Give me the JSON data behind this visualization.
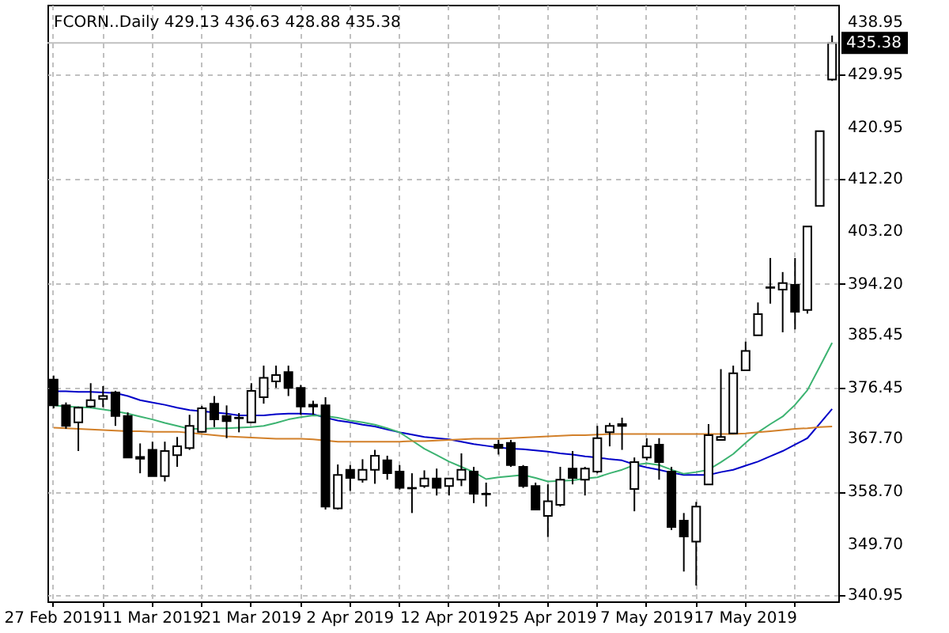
{
  "chart_data": {
    "type": "candlestick",
    "title": "FCORN..Daily  429.13 436.63 428.88 435.38",
    "categories": [
      "27 Feb 2019",
      null,
      null,
      null,
      null,
      null,
      null,
      null,
      "11 Mar 2019",
      null,
      null,
      null,
      null,
      null,
      null,
      null,
      "21 Mar 2019",
      null,
      null,
      null,
      null,
      null,
      null,
      null,
      "2 Apr 2019",
      null,
      null,
      null,
      null,
      null,
      null,
      null,
      "12 Apr 2019",
      null,
      null,
      null,
      null,
      null,
      null,
      null,
      "25 Apr 2019",
      null,
      null,
      null,
      null,
      null,
      null,
      null,
      "7 May 2019",
      null,
      null,
      null,
      null,
      null,
      null,
      null,
      "17 May 2019",
      null,
      null,
      null,
      null,
      null,
      null,
      null
    ],
    "ohlc": [
      [
        377.8,
        378.5,
        372.9,
        373.4
      ],
      [
        373.4,
        373.9,
        369.4,
        369.9
      ],
      [
        370.5,
        373.2,
        365.6,
        373.0
      ],
      [
        373.2,
        377.2,
        373.0,
        374.3
      ],
      [
        374.5,
        376.7,
        373.1,
        375.0
      ],
      [
        375.6,
        375.9,
        369.9,
        371.6
      ],
      [
        371.6,
        372.2,
        364.5,
        364.5
      ],
      [
        364.6,
        366.9,
        361.8,
        364.3
      ],
      [
        365.8,
        367.2,
        361.3,
        361.3
      ],
      [
        361.3,
        367.2,
        360.4,
        365.6
      ],
      [
        364.9,
        368.0,
        362.9,
        366.4
      ],
      [
        366.1,
        371.8,
        365.8,
        369.9
      ],
      [
        368.9,
        373.3,
        368.8,
        372.9
      ],
      [
        373.7,
        375.0,
        369.7,
        371.0
      ],
      [
        371.6,
        373.4,
        367.8,
        370.7
      ],
      [
        371.3,
        372.1,
        368.8,
        371.2
      ],
      [
        370.5,
        377.2,
        370.4,
        375.9
      ],
      [
        374.8,
        380.2,
        373.7,
        378.1
      ],
      [
        377.5,
        380.2,
        376.4,
        378.6
      ],
      [
        379.1,
        380.2,
        375.0,
        376.4
      ],
      [
        376.4,
        376.9,
        371.8,
        373.2
      ],
      [
        373.5,
        374.2,
        371.8,
        373.2
      ],
      [
        373.4,
        374.8,
        355.6,
        356.1
      ],
      [
        355.8,
        363.3,
        355.6,
        361.5
      ],
      [
        362.4,
        363.2,
        358.8,
        361.0
      ],
      [
        360.7,
        364.2,
        360.2,
        362.4
      ],
      [
        362.4,
        365.8,
        360.0,
        364.8
      ],
      [
        364.0,
        364.8,
        360.7,
        361.8
      ],
      [
        362.1,
        363.2,
        359.0,
        359.3
      ],
      [
        359.3,
        361.8,
        355.0,
        359.2
      ],
      [
        359.6,
        362.3,
        359.3,
        360.9
      ],
      [
        360.9,
        362.6,
        358.0,
        359.3
      ],
      [
        359.6,
        361.0,
        358.0,
        360.9
      ],
      [
        360.7,
        365.2,
        359.6,
        362.4
      ],
      [
        362.1,
        362.9,
        356.7,
        358.3
      ],
      [
        358.3,
        360.2,
        356.1,
        358.2
      ],
      [
        366.7,
        367.5,
        365.0,
        366.1
      ],
      [
        367.0,
        367.5,
        362.9,
        363.2
      ],
      [
        362.9,
        363.2,
        359.3,
        359.6
      ],
      [
        359.6,
        360.2,
        355.6,
        355.6
      ],
      [
        354.5,
        359.9,
        350.9,
        357.0
      ],
      [
        356.4,
        362.9,
        356.1,
        360.7
      ],
      [
        362.6,
        365.6,
        359.9,
        361.0
      ],
      [
        360.7,
        362.9,
        358.0,
        362.6
      ],
      [
        362.1,
        369.9,
        361.8,
        367.8
      ],
      [
        368.8,
        370.4,
        366.4,
        369.9
      ],
      [
        370.2,
        371.3,
        365.8,
        369.9
      ],
      [
        359.1,
        364.5,
        355.3,
        363.7
      ],
      [
        364.5,
        367.8,
        364.0,
        366.4
      ],
      [
        366.7,
        367.8,
        360.7,
        363.7
      ],
      [
        362.1,
        362.9,
        352.1,
        352.6
      ],
      [
        353.7,
        355.0,
        345.0,
        351.0
      ],
      [
        350.1,
        356.9,
        342.6,
        356.1
      ],
      [
        359.9,
        370.2,
        359.8,
        368.3
      ],
      [
        367.5,
        379.6,
        367.5,
        368.0
      ],
      [
        368.6,
        380.2,
        368.6,
        378.9
      ],
      [
        379.4,
        384.3,
        379.4,
        382.7
      ],
      [
        385.4,
        391.0,
        385.4,
        389.0
      ],
      [
        393.6,
        398.6,
        390.8,
        393.5
      ],
      [
        393.2,
        396.2,
        385.9,
        394.3
      ],
      [
        394.0,
        398.6,
        386.4,
        389.4
      ],
      [
        389.7,
        404.0,
        389.1,
        404.0
      ],
      [
        407.5,
        420.3,
        407.5,
        420.3
      ],
      [
        429.13,
        436.63,
        428.88,
        435.38
      ]
    ],
    "series": [
      {
        "type": "line",
        "color": "#0000c8",
        "values": [
          375.8,
          375.8,
          375.7,
          375.7,
          375.6,
          375.5,
          375.0,
          374.3,
          373.9,
          373.5,
          373.0,
          372.6,
          372.4,
          372.2,
          372.0,
          371.7,
          371.7,
          371.7,
          371.9,
          372.0,
          372.0,
          371.9,
          371.3,
          370.8,
          370.5,
          370.1,
          369.8,
          369.3,
          368.8,
          368.4,
          368.0,
          367.8,
          367.6,
          367.2,
          366.8,
          366.5,
          366.2,
          366.0,
          365.9,
          365.7,
          365.5,
          365.2,
          365.0,
          364.7,
          364.5,
          364.2,
          364.0,
          363.3,
          362.8,
          362.4,
          361.9,
          361.5,
          361.5,
          361.5,
          362.0,
          362.4,
          363.1,
          363.8,
          364.7,
          365.6,
          366.7,
          367.8,
          370.3,
          372.8
        ]
      },
      {
        "type": "line",
        "color": "#3cb371",
        "values": [
          373.4,
          373.2,
          373.1,
          373.0,
          372.7,
          372.4,
          372.0,
          371.5,
          371.0,
          370.4,
          369.9,
          369.4,
          369.4,
          369.5,
          369.5,
          369.6,
          369.7,
          369.9,
          370.4,
          371.0,
          371.4,
          371.7,
          371.6,
          371.3,
          370.8,
          370.5,
          370.1,
          369.5,
          368.8,
          367.4,
          366.0,
          364.9,
          363.8,
          362.9,
          362.0,
          360.8,
          361.1,
          361.3,
          361.5,
          361.0,
          360.4,
          360.5,
          360.6,
          360.9,
          361.1,
          361.8,
          362.4,
          363.2,
          363.5,
          363.2,
          362.4,
          361.7,
          362.0,
          362.4,
          363.7,
          365.1,
          367.0,
          368.8,
          370.2,
          371.5,
          373.5,
          376.0,
          380.0,
          384.1
        ]
      },
      {
        "type": "line",
        "color": "#d2802a",
        "values": [
          369.6,
          369.5,
          369.4,
          369.3,
          369.2,
          369.1,
          369.0,
          369.0,
          368.9,
          368.9,
          368.9,
          368.7,
          368.5,
          368.3,
          368.1,
          368.0,
          367.9,
          367.8,
          367.7,
          367.7,
          367.7,
          367.6,
          367.4,
          367.2,
          367.2,
          367.2,
          367.2,
          367.2,
          367.2,
          367.3,
          367.3,
          367.4,
          367.5,
          367.6,
          367.7,
          367.7,
          367.7,
          367.8,
          367.9,
          368.0,
          368.1,
          368.2,
          368.3,
          368.3,
          368.4,
          368.5,
          368.5,
          368.5,
          368.5,
          368.5,
          368.5,
          368.5,
          368.5,
          368.5,
          368.5,
          368.5,
          368.6,
          368.8,
          369.0,
          369.2,
          369.4,
          369.5,
          369.7,
          369.8
        ]
      }
    ],
    "ylim": [
      339.9,
      441.9
    ],
    "yticks": [
      {
        "value": 340.95,
        "label": "340.95"
      },
      {
        "value": 349.7,
        "label": "349.70"
      },
      {
        "value": 358.7,
        "label": "358.70"
      },
      {
        "value": 367.7,
        "label": "367.70"
      },
      {
        "value": 376.45,
        "label": "376.45"
      },
      {
        "value": 385.45,
        "label": "385.45"
      },
      {
        "value": 394.2,
        "label": "394.20"
      },
      {
        "value": 403.2,
        "label": "403.20"
      },
      {
        "value": 412.2,
        "label": "412.20"
      },
      {
        "value": 420.95,
        "label": "420.95"
      },
      {
        "value": 429.95,
        "label": "429.95"
      },
      {
        "value": 438.95,
        "label": "438.95"
      }
    ],
    "ref_lines": [
      {
        "axis": "y",
        "value": 435.38,
        "label": "435.38",
        "color": "#c0c0c0"
      }
    ],
    "grid": true
  }
}
